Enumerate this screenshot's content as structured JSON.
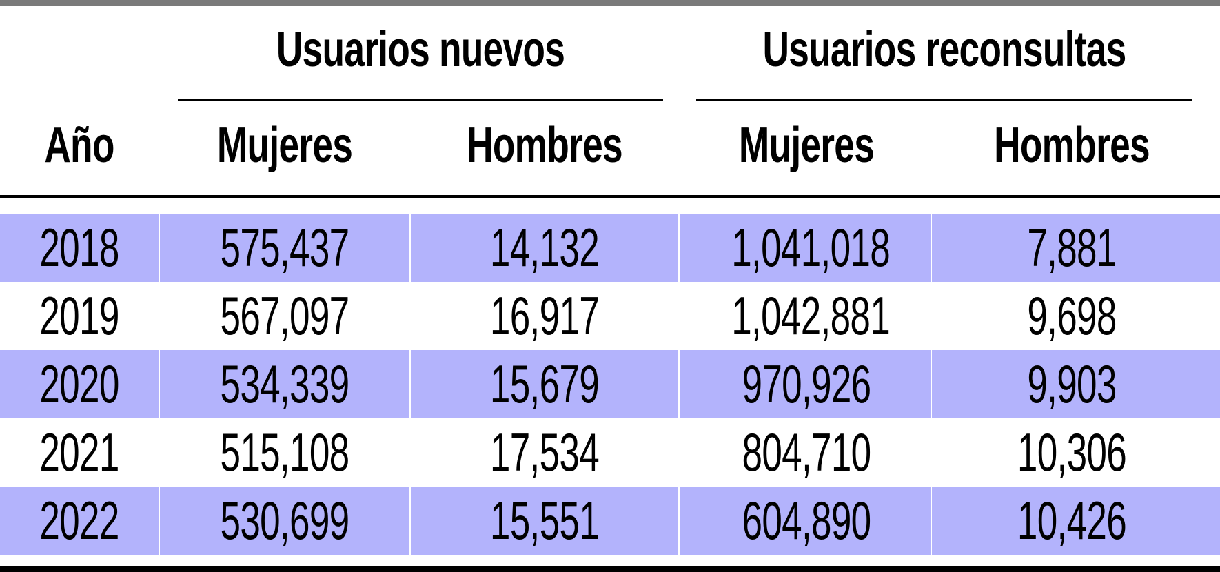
{
  "chart_data": {
    "type": "table",
    "group_headers": [
      "Usuarios nuevos",
      "Usuarios reconsultas"
    ],
    "columns": [
      "Año",
      "Mujeres",
      "Hombres",
      "Mujeres",
      "Hombres"
    ],
    "rows": [
      [
        "2018",
        "575,437",
        "14,132",
        "1,041,018",
        "7,881"
      ],
      [
        "2019",
        "567,097",
        "16,917",
        "1,042,881",
        "9,698"
      ],
      [
        "2020",
        "534,339",
        "15,679",
        "970,926",
        "9,903"
      ],
      [
        "2021",
        "515,108",
        "17,534",
        "804,710",
        "10,306"
      ],
      [
        "2022",
        "530,699",
        "15,551",
        "604,890",
        "10,426"
      ]
    ],
    "row_shading": [
      "#b3b3fc",
      "#ffffff",
      "#b3b3fc",
      "#ffffff",
      "#b3b3fc"
    ]
  }
}
